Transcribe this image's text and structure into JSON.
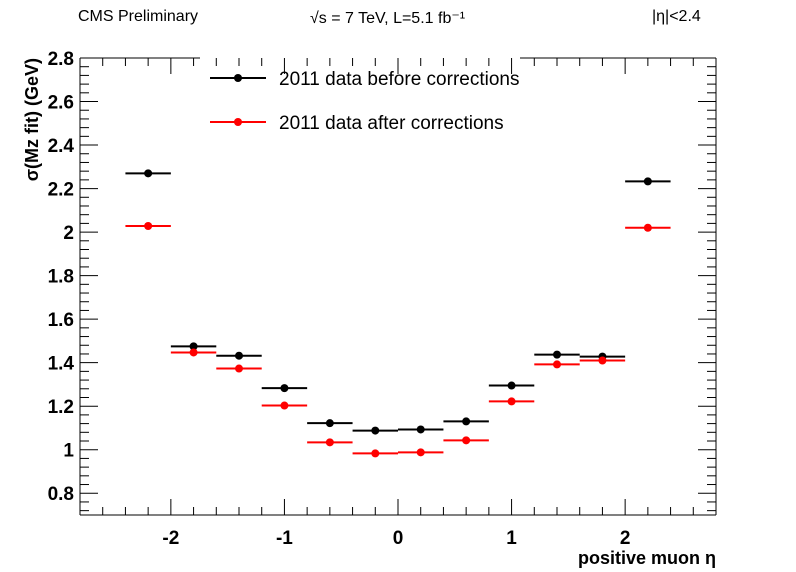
{
  "header": {
    "left": "CMS Preliminary",
    "center": "√s = 7 TeV, L=5.1 fb⁻¹",
    "right": "|η|<2.4"
  },
  "chart_data": {
    "type": "scatter",
    "title": "",
    "xlabel": "positive muon η",
    "ylabel": "σ(Mz fit) (GeV)",
    "xlim": [
      -2.8,
      2.8
    ],
    "ylim": [
      0.7,
      2.8
    ],
    "x_ticks": [
      -2,
      -1,
      0,
      1,
      2
    ],
    "y_ticks": [
      0.8,
      1,
      1.2,
      1.4,
      1.6,
      1.8,
      2,
      2.2,
      2.4,
      2.6,
      2.8
    ],
    "bin_half_width": 0.2,
    "legend_position": "top-center",
    "grid": false,
    "series": [
      {
        "name": "2011 data before corrections",
        "color": "#000000",
        "x": [
          -2.2,
          -1.8,
          -1.4,
          -1.0,
          -0.6,
          -0.2,
          0.2,
          0.6,
          1.0,
          1.4,
          1.8,
          2.2
        ],
        "values": [
          2.27,
          1.475,
          1.432,
          1.283,
          1.122,
          1.088,
          1.093,
          1.13,
          1.295,
          1.437,
          1.428,
          2.233
        ]
      },
      {
        "name": "2011 data after corrections",
        "color": "#ff0000",
        "x": [
          -2.2,
          -1.8,
          -1.4,
          -1.0,
          -0.6,
          -0.2,
          0.2,
          0.6,
          1.0,
          1.4,
          1.8,
          2.2
        ],
        "values": [
          2.028,
          1.447,
          1.373,
          1.203,
          1.034,
          0.983,
          0.988,
          1.043,
          1.222,
          1.392,
          1.41,
          2.02
        ]
      }
    ]
  }
}
